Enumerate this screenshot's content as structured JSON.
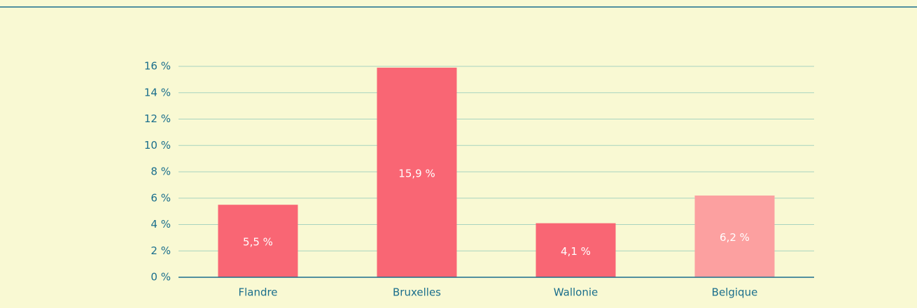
{
  "chart_data": {
    "type": "bar",
    "categories": [
      "Flandre",
      "Bruxelles",
      "Wallonie",
      "Belgique"
    ],
    "values": [
      5.5,
      15.9,
      4.1,
      6.2
    ],
    "value_labels": [
      "5,5 %",
      "15,9 %",
      "4,1 %",
      "6,2 %"
    ],
    "colors": [
      "#f96674",
      "#f96674",
      "#f96674",
      "#fca0a0"
    ],
    "ylim": [
      0,
      16
    ],
    "yticks": [
      {
        "value": 0,
        "label": "0 %"
      },
      {
        "value": 2,
        "label": "2 %"
      },
      {
        "value": 4,
        "label": "4 %"
      },
      {
        "value": 6,
        "label": "6 %"
      },
      {
        "value": 8,
        "label": "8 %"
      },
      {
        "value": 10,
        "label": "10 %"
      },
      {
        "value": 12,
        "label": "12 %"
      },
      {
        "value": 14,
        "label": "14 %"
      },
      {
        "value": 16,
        "label": "16 %"
      }
    ],
    "grid": true
  }
}
